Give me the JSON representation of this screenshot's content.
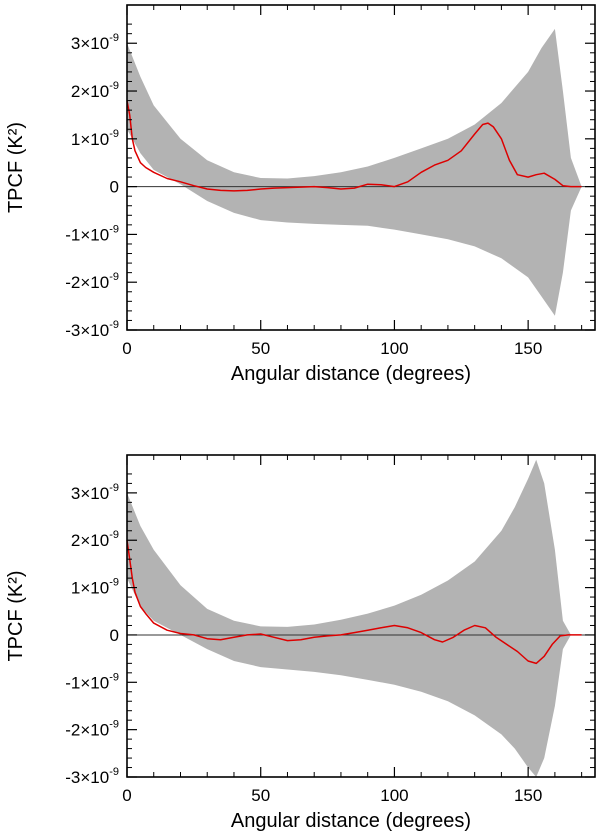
{
  "chart_data": [
    {
      "type": "line",
      "title": "",
      "xlabel": "Angular distance (degrees)",
      "ylabel": "TPCF (K²)",
      "xlim": [
        0,
        175
      ],
      "ylim": [
        -3e-09,
        3.8e-09
      ],
      "x_ticks": [
        0,
        50,
        100,
        150
      ],
      "x_tick_labels": [
        "0",
        "50",
        "100",
        "150"
      ],
      "y_ticks": [
        3e-09,
        2e-09,
        1e-09,
        0,
        -1e-09,
        -2e-09,
        -3e-09
      ],
      "y_tick_labels": [
        "3×10",
        "2×10",
        "1×10",
        "0",
        "-1×10",
        "-2×10",
        "-3×10"
      ],
      "y_tick_exponent": "-9",
      "zero_line": true,
      "grid": false,
      "colors": {
        "band": "#b3b3b3",
        "line": "#dd0000",
        "zero": "#333333"
      },
      "band": {
        "x": [
          0,
          5,
          10,
          20,
          30,
          40,
          50,
          60,
          70,
          80,
          90,
          100,
          110,
          120,
          130,
          140,
          150,
          155,
          160,
          163,
          166,
          170
        ],
        "upper": [
          3e-09,
          2.3e-09,
          1.7e-09,
          1e-09,
          5.5e-10,
          3e-10,
          1.8e-10,
          1.7e-10,
          2.2e-10,
          3e-10,
          4.2e-10,
          6e-10,
          8e-10,
          1e-09,
          1.3e-09,
          1.75e-09,
          2.4e-09,
          2.9e-09,
          3.3e-09,
          2e-09,
          6e-10,
          0.0
        ],
        "lower": [
          1.2e-09,
          7e-10,
          3.5e-10,
          5e-11,
          -3e-10,
          -5.5e-10,
          -7e-10,
          -7.5e-10,
          -7.8e-10,
          -8e-10,
          -8.2e-10,
          -9e-10,
          -1e-09,
          -1.1e-09,
          -1.25e-09,
          -1.5e-09,
          -1.9e-09,
          -2.3e-09,
          -2.7e-09,
          -1.8e-09,
          -5e-10,
          0.0
        ]
      },
      "series": [
        {
          "x": [
            0,
            1,
            2,
            3,
            5,
            7,
            10,
            15,
            20,
            25,
            30,
            35,
            40,
            45,
            50,
            55,
            60,
            65,
            70,
            75,
            80,
            85,
            90,
            95,
            100,
            105,
            110,
            115,
            120,
            125,
            130,
            133,
            135,
            137,
            140,
            143,
            146,
            150,
            153,
            156,
            160,
            163,
            166,
            170
          ],
          "y": [
            1.8e-09,
            1.5e-09,
            1e-09,
            7.5e-10,
            5e-10,
            4e-10,
            3e-10,
            1.7e-10,
            1e-10,
            2e-11,
            -5e-11,
            -8e-11,
            -9e-11,
            -8e-11,
            -5e-11,
            -3e-11,
            -2e-11,
            -1e-11,
            0.0,
            -2e-11,
            -5e-11,
            -3e-11,
            5e-11,
            4e-11,
            0.0,
            1e-10,
            3e-10,
            4.5e-10,
            5.5e-10,
            7.5e-10,
            1.1e-09,
            1.3e-09,
            1.33e-09,
            1.25e-09,
            1e-09,
            5.5e-10,
            2.5e-10,
            2e-10,
            2.5e-10,
            2.8e-10,
            1.5e-10,
            2e-11,
            0.0,
            0.0
          ]
        }
      ]
    },
    {
      "type": "line",
      "title": "",
      "xlabel": "Angular distance (degrees)",
      "ylabel": "TPCF (K²)",
      "xlim": [
        0,
        175
      ],
      "ylim": [
        -3e-09,
        3.8e-09
      ],
      "x_ticks": [
        0,
        50,
        100,
        150
      ],
      "x_tick_labels": [
        "0",
        "50",
        "100",
        "150"
      ],
      "y_ticks": [
        3e-09,
        2e-09,
        1e-09,
        0,
        -1e-09,
        -2e-09,
        -3e-09
      ],
      "y_tick_labels": [
        "3×10",
        "2×10",
        "1×10",
        "0",
        "-1×10",
        "-2×10",
        "-3×10"
      ],
      "y_tick_exponent": "-9",
      "zero_line": true,
      "grid": false,
      "colors": {
        "band": "#b3b3b3",
        "line": "#dd0000",
        "zero": "#333333"
      },
      "band": {
        "x": [
          0,
          5,
          10,
          20,
          30,
          40,
          50,
          60,
          70,
          80,
          90,
          100,
          110,
          120,
          130,
          140,
          145,
          150,
          153,
          156,
          160,
          163,
          166
        ],
        "upper": [
          3e-09,
          2.3e-09,
          1.8e-09,
          1.05e-09,
          5.5e-10,
          3e-10,
          1.8e-10,
          1.7e-10,
          2.2e-10,
          3.2e-10,
          4.5e-10,
          6.2e-10,
          8.5e-10,
          1.15e-09,
          1.55e-09,
          2.2e-09,
          2.7e-09,
          3.3e-09,
          3.7e-09,
          3.2e-09,
          1.8e-09,
          3e-10,
          0.0
        ],
        "lower": [
          1.2e-09,
          6e-10,
          3e-10,
          0.0,
          -3e-10,
          -5.5e-10,
          -6.8e-10,
          -7.3e-10,
          -7.8e-10,
          -8.5e-10,
          -9.5e-10,
          -1.05e-09,
          -1.2e-09,
          -1.4e-09,
          -1.7e-09,
          -2.1e-09,
          -2.4e-09,
          -2.8e-09,
          -3e-09,
          -2.6e-09,
          -1.5e-09,
          -3e-10,
          0.0
        ]
      },
      "series": [
        {
          "x": [
            0,
            1,
            2,
            3,
            5,
            7,
            10,
            15,
            20,
            25,
            30,
            35,
            40,
            45,
            50,
            55,
            60,
            65,
            70,
            75,
            80,
            85,
            90,
            95,
            100,
            105,
            110,
            115,
            118,
            122,
            126,
            130,
            134,
            138,
            142,
            146,
            150,
            153,
            156,
            159,
            162,
            165,
            170
          ],
          "y": [
            2e-09,
            1.6e-09,
            1.2e-09,
            9e-10,
            6e-10,
            4.5e-10,
            2.5e-10,
            1e-10,
            3e-11,
            0.0,
            -8e-11,
            -1e-10,
            -5e-11,
            0.0,
            2e-11,
            -5e-11,
            -1.2e-10,
            -1e-10,
            -5e-11,
            -2e-11,
            0.0,
            5e-11,
            1e-10,
            1.5e-10,
            2e-10,
            1.5e-10,
            5e-11,
            -1e-10,
            -1.5e-10,
            -5e-11,
            1e-10,
            2e-10,
            1.5e-10,
            -5e-11,
            -2e-10,
            -3.5e-10,
            -5.5e-10,
            -6e-10,
            -4.5e-10,
            -2e-10,
            -2e-11,
            0.0,
            0.0
          ]
        }
      ]
    }
  ]
}
